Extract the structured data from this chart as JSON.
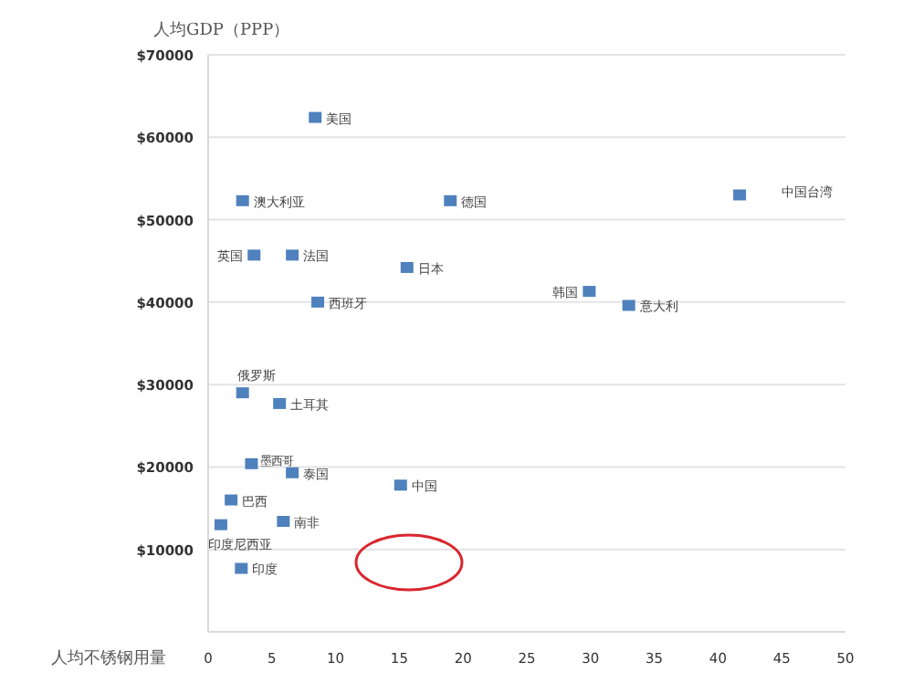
{
  "chart_data": {
    "type": "scatter",
    "ylabel": "人均GDP（PPP）",
    "xlabel": "人均不锈钢用量",
    "marker": "square",
    "grid": "y",
    "xlim": [
      0,
      50
    ],
    "xticks": [
      0,
      5,
      10,
      15,
      20,
      25,
      30,
      35,
      40,
      45,
      50
    ],
    "ylim": [
      0,
      70000
    ],
    "yticks": [
      {
        "value": 0,
        "label": null
      },
      {
        "value": 10000,
        "label": "$10000"
      },
      {
        "value": 20000,
        "label": "$20000"
      },
      {
        "value": 30000,
        "label": "$30000"
      },
      {
        "value": 40000,
        "label": "$40000"
      },
      {
        "value": 50000,
        "label": "$50000"
      },
      {
        "value": 60000,
        "label": "$60000"
      },
      {
        "value": 70000,
        "label": "$70000"
      }
    ],
    "series": [
      {
        "name": "美国",
        "color": "#4f81bd",
        "x": [
          8.4
        ],
        "values": [
          62400
        ]
      },
      {
        "name": "澳大利亚",
        "color": "#4f81bd",
        "x": [
          2.7
        ],
        "values": [
          52300
        ]
      },
      {
        "name": "德国",
        "color": "#4f81bd",
        "x": [
          19.0
        ],
        "values": [
          52300
        ]
      },
      {
        "name": "中国台湾",
        "color": "#4f81bd",
        "x": [
          41.7
        ],
        "values": [
          53000
        ]
      },
      {
        "name": "英国",
        "color": "#4f81bd",
        "x": [
          3.6
        ],
        "values": [
          45700
        ]
      },
      {
        "name": "法国",
        "color": "#4f81bd",
        "x": [
          6.6
        ],
        "values": [
          45700
        ]
      },
      {
        "name": "日本",
        "color": "#4f81bd",
        "x": [
          15.6
        ],
        "values": [
          44200
        ]
      },
      {
        "name": "西班牙",
        "color": "#4f81bd",
        "x": [
          8.6
        ],
        "values": [
          40000
        ]
      },
      {
        "name": "韩国",
        "color": "#4f81bd",
        "x": [
          29.9
        ],
        "values": [
          41300
        ]
      },
      {
        "name": "意大利",
        "color": "#4f81bd",
        "x": [
          33.0
        ],
        "values": [
          39600
        ]
      },
      {
        "name": "俄罗斯",
        "color": "#4f81bd",
        "x": [
          2.7
        ],
        "values": [
          29000
        ]
      },
      {
        "name": "土耳其",
        "color": "#4f81bd",
        "x": [
          5.6
        ],
        "values": [
          27700
        ]
      },
      {
        "name": "墨西哥",
        "color": "#4f81bd",
        "x": [
          3.4
        ],
        "values": [
          20400
        ]
      },
      {
        "name": "泰国",
        "color": "#4f81bd",
        "x": [
          6.6
        ],
        "values": [
          19300
        ]
      },
      {
        "name": "中国",
        "color": "#4f81bd",
        "x": [
          15.1
        ],
        "values": [
          17800
        ]
      },
      {
        "name": "巴西",
        "color": "#4f81bd",
        "x": [
          1.8
        ],
        "values": [
          16000
        ]
      },
      {
        "name": "印度尼西亚",
        "color": "#4f81bd",
        "x": [
          1.0
        ],
        "values": [
          13000
        ]
      },
      {
        "name": "南非",
        "color": "#4f81bd",
        "x": [
          5.9
        ],
        "values": [
          13400
        ]
      },
      {
        "name": "印度",
        "color": "#4f81bd",
        "x": [
          2.6
        ],
        "values": [
          7700
        ]
      }
    ]
  }
}
